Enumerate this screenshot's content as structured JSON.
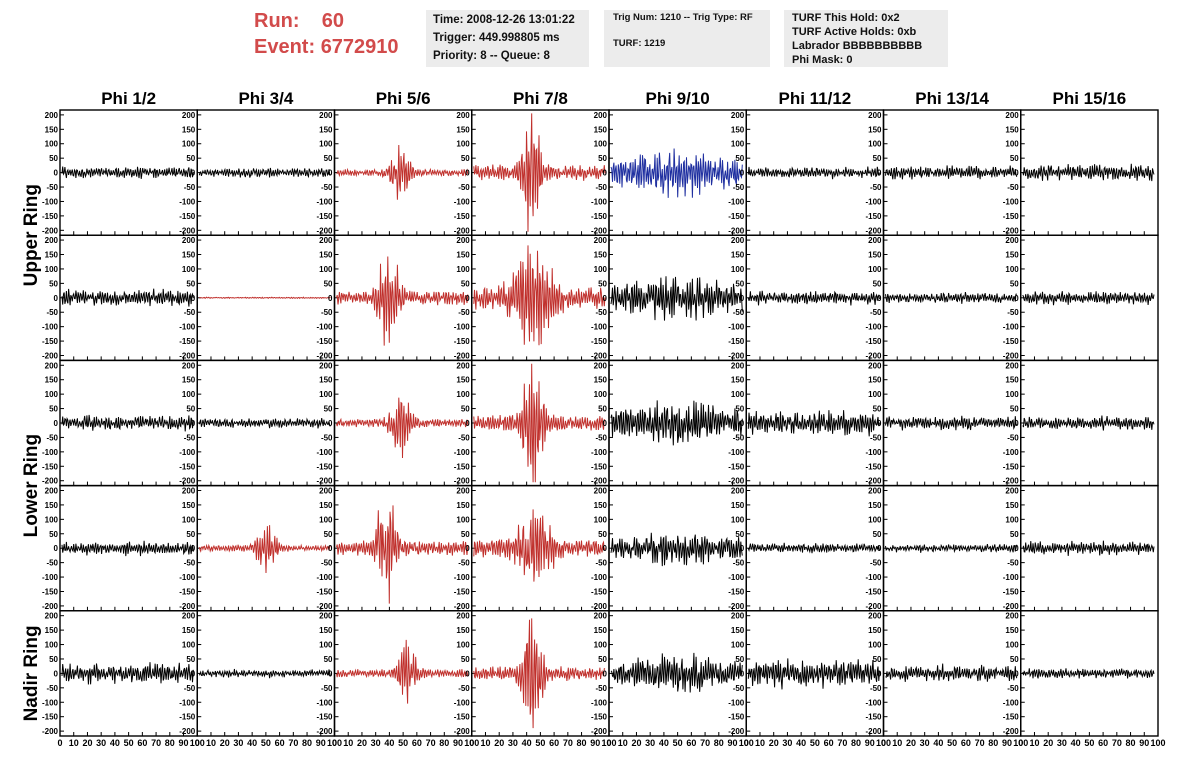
{
  "header": {
    "run_label": "Run:",
    "run_value": "60",
    "event_label": "Event:",
    "event_value": "6772910"
  },
  "info_time": {
    "time": "Time: 2008-12-26 13:01:22",
    "trigger": "Trigger: 449.998805 ms",
    "priority": "Priority: 8 -- Queue: 8"
  },
  "info_trigger": {
    "trig": "Trig Num: 1210 -- Trig Type: RF",
    "turf": "TURF: 1219"
  },
  "info_turf": {
    "hold": "TURF This Hold: 0x2",
    "active": "TURF Active Holds: 0xb",
    "labrador": "Labrador BBBBBBBBBB",
    "phimask": "Phi Mask: 0"
  },
  "columns": [
    "Phi 1/2",
    "Phi 3/4",
    "Phi 5/6",
    "Phi 7/8",
    "Phi 9/10",
    "Phi 11/12",
    "Phi 13/14",
    "Phi 15/16"
  ],
  "ring_labels": [
    {
      "label": "Upper Ring",
      "rows": [
        0,
        1
      ]
    },
    {
      "label": "Lower Ring",
      "rows": [
        2,
        3
      ]
    },
    {
      "label": "Nadir Ring",
      "rows": [
        4
      ]
    }
  ],
  "y_ticks": [
    200,
    150,
    100,
    50,
    0,
    -50,
    -100,
    -150,
    -200
  ],
  "x_ticks": [
    "0",
    "10",
    "20",
    "30",
    "40",
    "50",
    "60",
    "70",
    "80",
    "90",
    "100"
  ],
  "colors": {
    "normal": "#000000",
    "triggered": "#c0302c",
    "selected": "#1f2fa0",
    "header_red": "#d24b4b",
    "info_bg": "#ececec"
  },
  "chart_data": {
    "type": "line",
    "xlabel": "",
    "ylabel": "",
    "xlim": [
      0,
      100
    ],
    "ylim": [
      -200,
      200
    ],
    "panels": [
      [
        {
          "style": "normal",
          "amp": 22,
          "env": "noise",
          "center": 0
        },
        {
          "style": "normal",
          "amp": 18,
          "env": "noise",
          "center": 0
        },
        {
          "style": "triggered",
          "amp": 85,
          "env": "pulse",
          "center": 48
        },
        {
          "style": "triggered",
          "amp": 190,
          "env": "pulse",
          "center": 44
        },
        {
          "style": "selected",
          "amp": 80,
          "env": "broad",
          "center": 50
        },
        {
          "style": "normal",
          "amp": 20,
          "env": "noise",
          "center": 0
        },
        {
          "style": "normal",
          "amp": 25,
          "env": "noise",
          "center": 0
        },
        {
          "style": "normal",
          "amp": 30,
          "env": "noise",
          "center": 0
        }
      ],
      [
        {
          "style": "normal",
          "amp": 30,
          "env": "noise",
          "center": 0
        },
        {
          "style": "triggered",
          "amp": 3,
          "env": "flat",
          "center": 0
        },
        {
          "style": "triggered",
          "amp": 180,
          "env": "pulse",
          "center": 40
        },
        {
          "style": "triggered",
          "amp": 150,
          "env": "broadpulse",
          "center": 45
        },
        {
          "style": "normal",
          "amp": 80,
          "env": "broad",
          "center": 50
        },
        {
          "style": "normal",
          "amp": 25,
          "env": "noise",
          "center": 0
        },
        {
          "style": "normal",
          "amp": 20,
          "env": "noise",
          "center": 0
        },
        {
          "style": "normal",
          "amp": 25,
          "env": "noise",
          "center": 0
        }
      ],
      [
        {
          "style": "normal",
          "amp": 30,
          "env": "noise",
          "center": 0
        },
        {
          "style": "normal",
          "amp": 18,
          "env": "noise",
          "center": 0
        },
        {
          "style": "triggered",
          "amp": 100,
          "env": "pulse",
          "center": 48
        },
        {
          "style": "triggered",
          "amp": 190,
          "env": "pulse",
          "center": 44
        },
        {
          "style": "normal",
          "amp": 80,
          "env": "broad",
          "center": 50
        },
        {
          "style": "normal",
          "amp": 45,
          "env": "noise",
          "center": 0
        },
        {
          "style": "normal",
          "amp": 25,
          "env": "noise",
          "center": 0
        },
        {
          "style": "normal",
          "amp": 25,
          "env": "noise",
          "center": 0
        }
      ],
      [
        {
          "style": "normal",
          "amp": 25,
          "env": "noise",
          "center": 0
        },
        {
          "style": "triggered",
          "amp": 80,
          "env": "pulse",
          "center": 50
        },
        {
          "style": "triggered",
          "amp": 180,
          "env": "pulse",
          "center": 38
        },
        {
          "style": "triggered",
          "amp": 110,
          "env": "broadpulse",
          "center": 45
        },
        {
          "style": "normal",
          "amp": 60,
          "env": "broad",
          "center": 50
        },
        {
          "style": "normal",
          "amp": 18,
          "env": "noise",
          "center": 0
        },
        {
          "style": "normal",
          "amp": 15,
          "env": "noise",
          "center": 0
        },
        {
          "style": "normal",
          "amp": 25,
          "env": "noise",
          "center": 0
        }
      ],
      [
        {
          "style": "normal",
          "amp": 40,
          "env": "noise",
          "center": 0
        },
        {
          "style": "normal",
          "amp": 15,
          "env": "noise",
          "center": 0
        },
        {
          "style": "triggered",
          "amp": 100,
          "env": "pulse",
          "center": 52
        },
        {
          "style": "triggered",
          "amp": 180,
          "env": "pulse",
          "center": 44
        },
        {
          "style": "normal",
          "amp": 70,
          "env": "broad",
          "center": 50
        },
        {
          "style": "normal",
          "amp": 50,
          "env": "noise",
          "center": 0
        },
        {
          "style": "normal",
          "amp": 30,
          "env": "noise",
          "center": 0
        },
        {
          "style": "normal",
          "amp": 20,
          "env": "noise",
          "center": 0
        }
      ]
    ]
  }
}
